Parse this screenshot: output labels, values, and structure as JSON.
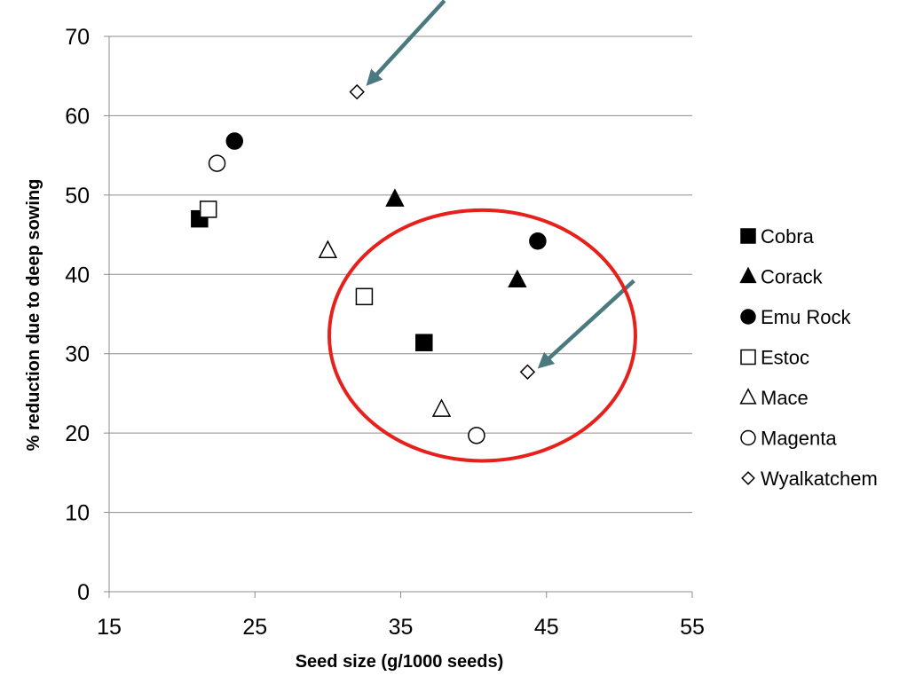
{
  "chart_data": {
    "type": "scatter",
    "title": "",
    "xlabel": "Seed size (g/1000 seeds)",
    "ylabel": "% reduction due to deep sowing",
    "xlim": [
      15,
      55
    ],
    "ylim": [
      0,
      70
    ],
    "x_ticks": [
      "15",
      "25",
      "35",
      "45",
      "55"
    ],
    "y_ticks": [
      "0",
      "10",
      "20",
      "30",
      "40",
      "50",
      "60",
      "70"
    ],
    "grid": "horizontal",
    "legend_position": "right",
    "series": [
      {
        "name": "Cobra",
        "marker": "square-filled",
        "points": [
          [
            21.2,
            47
          ],
          [
            36.6,
            31.4
          ]
        ]
      },
      {
        "name": "Corack",
        "marker": "triangle-filled",
        "points": [
          [
            34.6,
            49.5
          ],
          [
            43,
            39.3
          ]
        ]
      },
      {
        "name": "Emu Rock",
        "marker": "circle-filled",
        "points": [
          [
            23.6,
            56.8
          ],
          [
            44.4,
            44.2
          ]
        ]
      },
      {
        "name": "Estoc",
        "marker": "square-open",
        "points": [
          [
            21.8,
            48.2
          ],
          [
            32.5,
            37.2
          ]
        ]
      },
      {
        "name": "Mace",
        "marker": "triangle-open",
        "points": [
          [
            30,
            43
          ],
          [
            37.8,
            23
          ]
        ]
      },
      {
        "name": "Magenta",
        "marker": "circle-open",
        "points": [
          [
            22.4,
            54
          ],
          [
            40.2,
            19.7
          ]
        ]
      },
      {
        "name": "Wyalkatchem",
        "marker": "diamond-open",
        "points": [
          [
            32,
            63
          ],
          [
            43.7,
            27.7
          ]
        ]
      }
    ],
    "annotations": [
      {
        "type": "arrow",
        "color": "#4a7a80",
        "from": [
          38,
          74.5
        ],
        "to": [
          33,
          64.5
        ]
      },
      {
        "type": "arrow",
        "color": "#4a7a80",
        "from": [
          51,
          39.2
        ],
        "to": [
          44.8,
          28.8
        ]
      },
      {
        "type": "ellipse",
        "color": "#e8201c",
        "center": [
          40.6,
          32.3
        ],
        "rx": 10.5,
        "ry": 15.8
      }
    ]
  }
}
